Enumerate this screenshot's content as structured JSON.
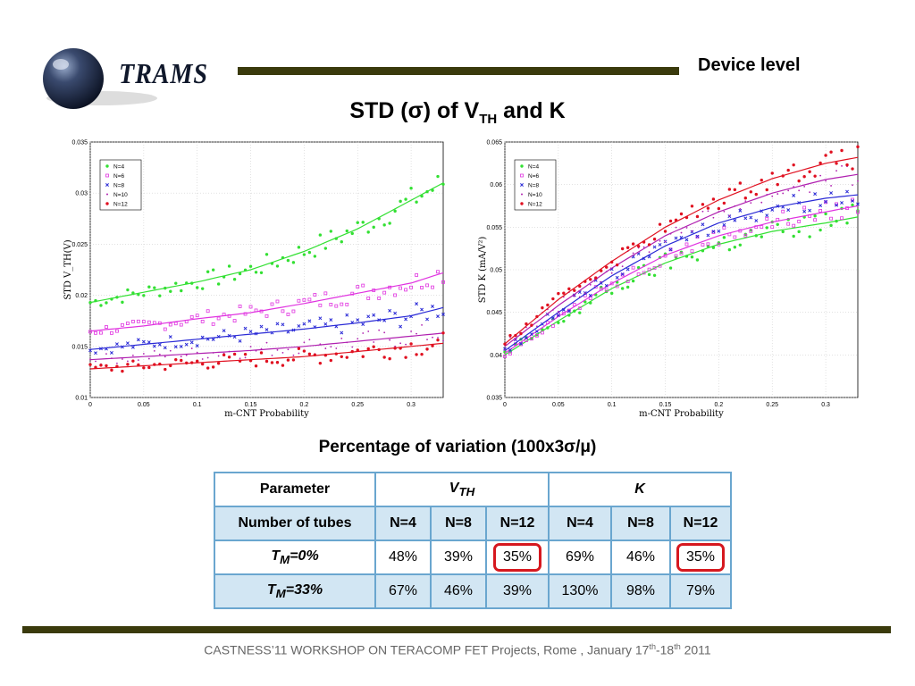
{
  "logo": {
    "text": "TRAMS"
  },
  "header": {
    "section_label": "Device level"
  },
  "title": {
    "prefix": "STD (σ) of V",
    "subscript": "TH",
    "suffix": " and K"
  },
  "table": {
    "title": "Percentage of variation (100x3σ/μ)",
    "header": {
      "parameter": "Parameter",
      "vth_main": "V",
      "vth_sub": "TH",
      "k_label": "K"
    },
    "tubes_row": {
      "label": "Number of tubes",
      "cols": [
        "N=4",
        "N=8",
        "N=12",
        "N=4",
        "N=8",
        "N=12"
      ]
    },
    "rows": [
      {
        "label_main": "T",
        "label_sub": "M",
        "label_suffix": "=0%",
        "values": [
          "48%",
          "39%",
          "35%",
          "69%",
          "46%",
          "35%"
        ]
      },
      {
        "label_main": "T",
        "label_sub": "M",
        "label_suffix": "=33%",
        "values": [
          "67%",
          "46%",
          "39%",
          "130%",
          "98%",
          "79%"
        ]
      }
    ]
  },
  "footer": {
    "part1": "CASTNESS’11 WORKSHOP ON TERACOMP  FET Projects, Rome , January 17",
    "sup1": "th",
    "part2": "-18",
    "sup2": "th",
    "part3": " 2011"
  },
  "chart_data": [
    {
      "type": "scatter",
      "xlabel": "m-CNT Probability",
      "ylabel": "STD V_TH(V)",
      "xlim": [
        0,
        0.33
      ],
      "ylim": [
        0.01,
        0.035
      ],
      "xticks": [
        "0",
        "0.05",
        "0.1",
        "0.15",
        "0.2",
        "0.25",
        "0.3"
      ],
      "xtick_values": [
        0,
        0.05,
        0.1,
        0.15,
        0.2,
        0.25,
        0.3
      ],
      "yticks": [
        "0.01",
        "0.015",
        "0.02",
        "0.025",
        "0.03",
        "0.035"
      ],
      "ytick_values": [
        0.01,
        0.015,
        0.02,
        0.025,
        0.03,
        0.035
      ],
      "grid": true,
      "legend_position": "top-left",
      "x": [
        0,
        0.05,
        0.1,
        0.15,
        0.2,
        0.25,
        0.3,
        0.33
      ],
      "series": [
        {
          "name": "N=4",
          "color": "#33e033",
          "marker": "o",
          "values": [
            0.0193,
            0.0203,
            0.0213,
            0.0225,
            0.0243,
            0.0265,
            0.0293,
            0.031
          ]
        },
        {
          "name": "N=6",
          "color": "#e033e0",
          "marker": "s",
          "values": [
            0.0165,
            0.017,
            0.0177,
            0.0183,
            0.0192,
            0.0202,
            0.0212,
            0.0222
          ]
        },
        {
          "name": "N=8",
          "color": "#2a2ad6",
          "marker": "x",
          "values": [
            0.0147,
            0.0152,
            0.0157,
            0.0162,
            0.0167,
            0.0173,
            0.018,
            0.0188
          ]
        },
        {
          "name": "N=10",
          "color": "#b020b0",
          "marker": ".",
          "values": [
            0.0137,
            0.014,
            0.0143,
            0.0146,
            0.015,
            0.0155,
            0.016,
            0.0163
          ]
        },
        {
          "name": "N=12",
          "color": "#e01020",
          "marker": "o",
          "values": [
            0.0128,
            0.0131,
            0.0134,
            0.0137,
            0.014,
            0.0145,
            0.015,
            0.0153
          ]
        }
      ]
    },
    {
      "type": "scatter",
      "xlabel": "m-CNT Probability",
      "ylabel": "STD K (mA/V²)",
      "xlim": [
        0,
        0.33
      ],
      "ylim": [
        0.035,
        0.065
      ],
      "xticks": [
        "0",
        "0.05",
        "0.1",
        "0.15",
        "0.2",
        "0.25",
        "0.3"
      ],
      "xtick_values": [
        0,
        0.05,
        0.1,
        0.15,
        0.2,
        0.25,
        0.3
      ],
      "yticks": [
        "0.035",
        "0.04",
        "0.045",
        "0.05",
        "0.055",
        "0.06",
        "0.065"
      ],
      "ytick_values": [
        0.035,
        0.04,
        0.045,
        0.05,
        0.055,
        0.06,
        0.065
      ],
      "grid": true,
      "legend_position": "top-left",
      "x": [
        0,
        0.05,
        0.1,
        0.15,
        0.2,
        0.25,
        0.3,
        0.33
      ],
      "series": [
        {
          "name": "N=4",
          "color": "#33e033",
          "marker": "o",
          "values": [
            0.04,
            0.044,
            0.0478,
            0.0508,
            0.053,
            0.0545,
            0.0555,
            0.0562
          ]
        },
        {
          "name": "N=6",
          "color": "#e033e0",
          "marker": "s",
          "values": [
            0.0402,
            0.0445,
            0.0484,
            0.0517,
            0.054,
            0.0556,
            0.0568,
            0.0575
          ]
        },
        {
          "name": "N=8",
          "color": "#2a2ad6",
          "marker": "x",
          "values": [
            0.0405,
            0.045,
            0.0493,
            0.0528,
            0.0555,
            0.0573,
            0.0584,
            0.0588
          ]
        },
        {
          "name": "N=10",
          "color": "#b020b0",
          "marker": ".",
          "values": [
            0.041,
            0.0458,
            0.0502,
            0.054,
            0.0568,
            0.059,
            0.0606,
            0.0612
          ]
        },
        {
          "name": "N=12",
          "color": "#e01020",
          "marker": "o",
          "values": [
            0.0413,
            0.0465,
            0.051,
            0.055,
            0.0582,
            0.0607,
            0.0625,
            0.0632
          ]
        }
      ]
    }
  ]
}
